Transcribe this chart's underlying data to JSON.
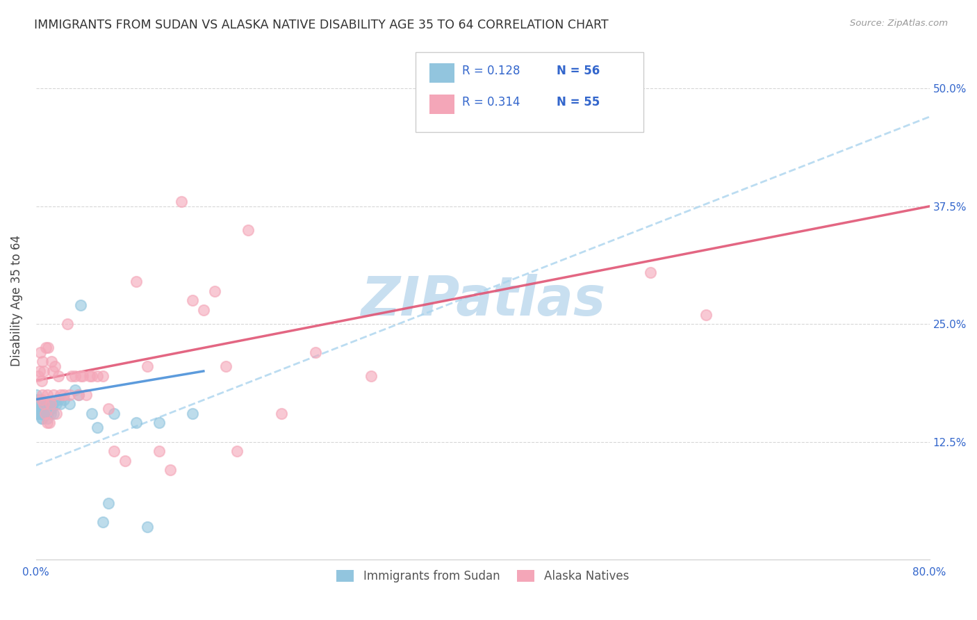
{
  "title": "IMMIGRANTS FROM SUDAN VS ALASKA NATIVE DISABILITY AGE 35 TO 64 CORRELATION CHART",
  "source": "Source: ZipAtlas.com",
  "ylabel": "Disability Age 35 to 64",
  "ytick_labels": [
    "12.5%",
    "25.0%",
    "37.5%",
    "50.0%"
  ],
  "ytick_values": [
    0.125,
    0.25,
    0.375,
    0.5
  ],
  "xlim": [
    0.0,
    0.8
  ],
  "ylim": [
    0.0,
    0.55
  ],
  "legend_label1": "Immigrants from Sudan",
  "legend_label2": "Alaska Natives",
  "color_sudan": "#92c5de",
  "color_alaska": "#f4a6b8",
  "trendline_color_sudan_solid": "#4a90d9",
  "trendline_color_sudan_dashed": "#aad4ee",
  "trendline_color_alaska": "#e05575",
  "watermark_color": "#c8dff0",
  "watermark_text": "ZIPatlas",
  "sudan_x": [
    0.0,
    0.0,
    0.0,
    0.0,
    0.0,
    0.002,
    0.002,
    0.002,
    0.003,
    0.003,
    0.003,
    0.003,
    0.004,
    0.004,
    0.004,
    0.005,
    0.005,
    0.005,
    0.005,
    0.006,
    0.006,
    0.006,
    0.007,
    0.007,
    0.007,
    0.008,
    0.008,
    0.009,
    0.009,
    0.01,
    0.01,
    0.01,
    0.011,
    0.012,
    0.013,
    0.013,
    0.014,
    0.015,
    0.016,
    0.018,
    0.02,
    0.022,
    0.025,
    0.03,
    0.035,
    0.038,
    0.04,
    0.05,
    0.055,
    0.06,
    0.065,
    0.07,
    0.09,
    0.1,
    0.11,
    0.14
  ],
  "sudan_y": [
    0.155,
    0.16,
    0.165,
    0.17,
    0.175,
    0.155,
    0.16,
    0.165,
    0.155,
    0.16,
    0.165,
    0.17,
    0.155,
    0.16,
    0.165,
    0.15,
    0.155,
    0.16,
    0.165,
    0.15,
    0.155,
    0.16,
    0.155,
    0.16,
    0.165,
    0.155,
    0.16,
    0.155,
    0.165,
    0.15,
    0.155,
    0.165,
    0.155,
    0.16,
    0.155,
    0.165,
    0.16,
    0.165,
    0.155,
    0.165,
    0.17,
    0.165,
    0.17,
    0.165,
    0.18,
    0.175,
    0.27,
    0.155,
    0.14,
    0.04,
    0.06,
    0.155,
    0.145,
    0.035,
    0.145,
    0.155
  ],
  "alaska_x": [
    0.002,
    0.003,
    0.004,
    0.005,
    0.005,
    0.006,
    0.006,
    0.007,
    0.007,
    0.008,
    0.009,
    0.01,
    0.01,
    0.011,
    0.012,
    0.013,
    0.014,
    0.015,
    0.016,
    0.017,
    0.018,
    0.02,
    0.022,
    0.025,
    0.028,
    0.03,
    0.032,
    0.035,
    0.038,
    0.04,
    0.042,
    0.045,
    0.048,
    0.05,
    0.055,
    0.06,
    0.065,
    0.07,
    0.08,
    0.09,
    0.1,
    0.11,
    0.12,
    0.13,
    0.14,
    0.15,
    0.16,
    0.17,
    0.18,
    0.19,
    0.22,
    0.25,
    0.3,
    0.55,
    0.6
  ],
  "alaska_y": [
    0.195,
    0.2,
    0.22,
    0.17,
    0.19,
    0.175,
    0.21,
    0.165,
    0.2,
    0.155,
    0.225,
    0.145,
    0.175,
    0.225,
    0.145,
    0.165,
    0.21,
    0.2,
    0.175,
    0.205,
    0.155,
    0.195,
    0.175,
    0.175,
    0.25,
    0.175,
    0.195,
    0.195,
    0.175,
    0.195,
    0.195,
    0.175,
    0.195,
    0.195,
    0.195,
    0.195,
    0.16,
    0.115,
    0.105,
    0.295,
    0.205,
    0.115,
    0.095,
    0.38,
    0.275,
    0.265,
    0.285,
    0.205,
    0.115,
    0.35,
    0.155,
    0.22,
    0.195,
    0.305,
    0.26
  ],
  "trend_alaska_y0": 0.19,
  "trend_alaska_y1": 0.375,
  "trend_sudan_solid_x0": 0.0,
  "trend_sudan_solid_x1": 0.15,
  "trend_sudan_solid_y0": 0.17,
  "trend_sudan_solid_y1": 0.2,
  "trend_sudan_dashed_x0": 0.0,
  "trend_sudan_dashed_x1": 0.8,
  "trend_sudan_dashed_y0": 0.1,
  "trend_sudan_dashed_y1": 0.47
}
